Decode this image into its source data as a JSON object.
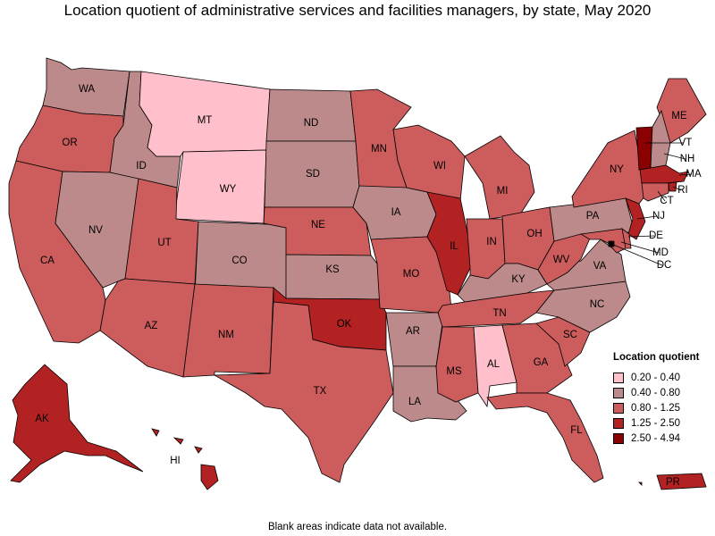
{
  "title": "Location quotient of administrative services and facilities managers, by state, May 2020",
  "footnote": "Blank areas indicate data not available.",
  "legend": {
    "title": "Location quotient",
    "items": [
      {
        "label": "0.20 - 0.40",
        "color": "#ffc0cb"
      },
      {
        "label": "0.40 - 0.80",
        "color": "#bc8a8a"
      },
      {
        "label": "0.80 - 1.25",
        "color": "#cd5c5c"
      },
      {
        "label": "1.25 - 2.50",
        "color": "#b22222"
      },
      {
        "label": "2.50 - 4.94",
        "color": "#8b0000"
      }
    ]
  },
  "states": [
    {
      "abbr": "WA",
      "class": 1
    },
    {
      "abbr": "OR",
      "class": 2
    },
    {
      "abbr": "CA",
      "class": 2
    },
    {
      "abbr": "ID",
      "class": 1
    },
    {
      "abbr": "NV",
      "class": 1
    },
    {
      "abbr": "MT",
      "class": 0
    },
    {
      "abbr": "WY",
      "class": 0
    },
    {
      "abbr": "UT",
      "class": 2
    },
    {
      "abbr": "AZ",
      "class": 2
    },
    {
      "abbr": "CO",
      "class": 1
    },
    {
      "abbr": "NM",
      "class": 2
    },
    {
      "abbr": "ND",
      "class": 1
    },
    {
      "abbr": "SD",
      "class": 1
    },
    {
      "abbr": "NE",
      "class": 2
    },
    {
      "abbr": "KS",
      "class": 1
    },
    {
      "abbr": "OK",
      "class": 3
    },
    {
      "abbr": "TX",
      "class": 2
    },
    {
      "abbr": "MN",
      "class": 2
    },
    {
      "abbr": "IA",
      "class": 1
    },
    {
      "abbr": "MO",
      "class": 2
    },
    {
      "abbr": "AR",
      "class": 1
    },
    {
      "abbr": "LA",
      "class": 1
    },
    {
      "abbr": "WI",
      "class": 2
    },
    {
      "abbr": "IL",
      "class": 3
    },
    {
      "abbr": "MI",
      "class": 2
    },
    {
      "abbr": "IN",
      "class": 2
    },
    {
      "abbr": "OH",
      "class": 2
    },
    {
      "abbr": "KY",
      "class": 1
    },
    {
      "abbr": "TN",
      "class": 2
    },
    {
      "abbr": "MS",
      "class": 2
    },
    {
      "abbr": "AL",
      "class": 0
    },
    {
      "abbr": "GA",
      "class": 2
    },
    {
      "abbr": "FL",
      "class": 2
    },
    {
      "abbr": "SC",
      "class": 2
    },
    {
      "abbr": "NC",
      "class": 1
    },
    {
      "abbr": "VA",
      "class": 1
    },
    {
      "abbr": "WV",
      "class": 2
    },
    {
      "abbr": "PA",
      "class": 1
    },
    {
      "abbr": "NY",
      "class": 2
    },
    {
      "abbr": "ME",
      "class": 2
    },
    {
      "abbr": "VT",
      "class": 4
    },
    {
      "abbr": "NH",
      "class": 1
    },
    {
      "abbr": "MA",
      "class": 3
    },
    {
      "abbr": "RI",
      "class": 3
    },
    {
      "abbr": "CT",
      "class": 2
    },
    {
      "abbr": "NJ",
      "class": 3
    },
    {
      "abbr": "DE",
      "class": 2
    },
    {
      "abbr": "MD",
      "class": 2
    },
    {
      "abbr": "DC",
      "class": 4
    },
    {
      "abbr": "AK",
      "class": 3
    },
    {
      "abbr": "HI",
      "class": 3
    },
    {
      "abbr": "PR",
      "class": 3
    }
  ]
}
